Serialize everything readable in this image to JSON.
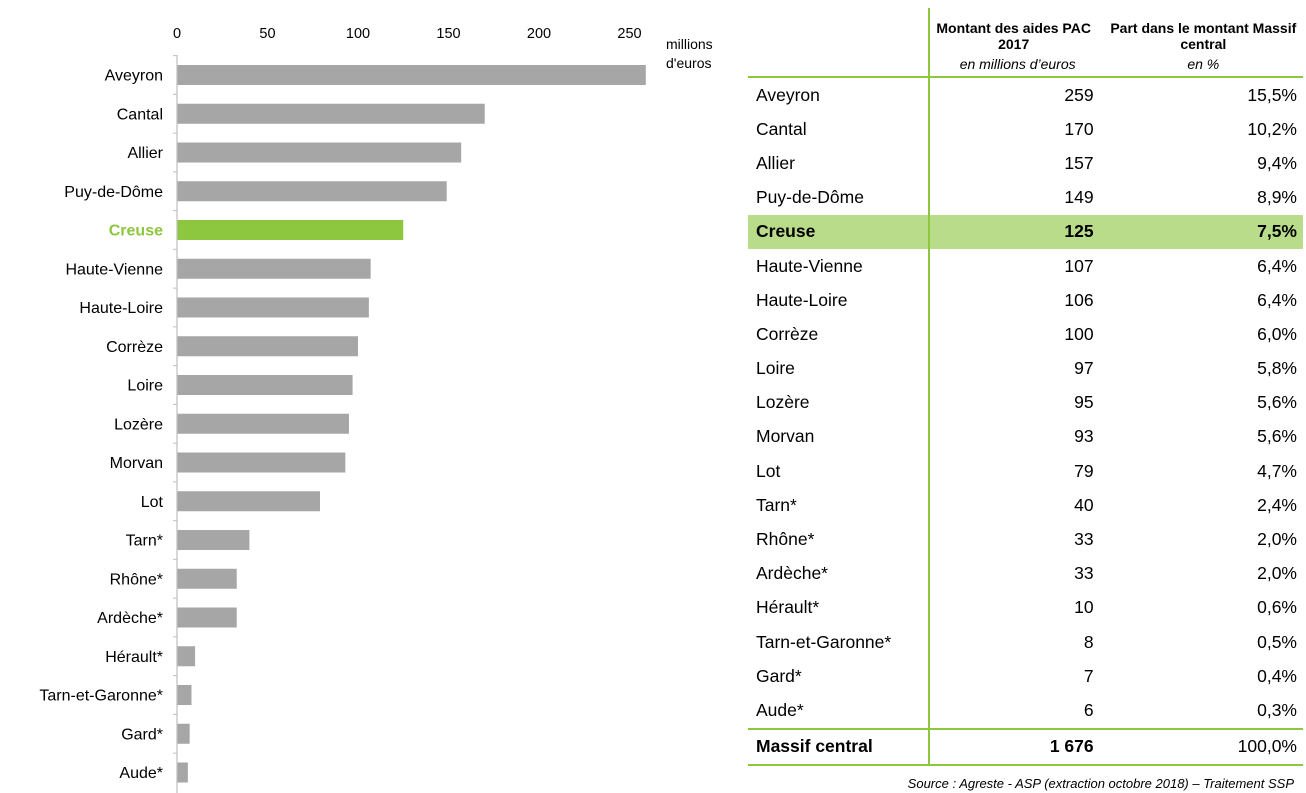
{
  "chart_data": {
    "type": "bar",
    "orientation": "horizontal",
    "categories": [
      "Aveyron",
      "Cantal",
      "Allier",
      "Puy-de-Dôme",
      "Creuse",
      "Haute-Vienne",
      "Haute-Loire",
      "Corrèze",
      "Loire",
      "Lozère",
      "Morvan",
      "Lot",
      "Tarn*",
      "Rhône*",
      "Ardèche*",
      "Hérault*",
      "Tarn-et-Garonne*",
      "Gard*",
      "Aude*"
    ],
    "values": [
      259,
      170,
      157,
      149,
      125,
      107,
      106,
      100,
      97,
      95,
      93,
      79,
      40,
      33,
      33,
      10,
      8,
      7,
      6
    ],
    "highlight": "Creuse",
    "xlim": [
      0,
      260
    ],
    "xticks": [
      0,
      50,
      100,
      150,
      200,
      250
    ],
    "xlabel": "millions d'euros",
    "colors": {
      "bar": "#a6a6a6",
      "highlight": "#8dc63f",
      "axis": "#bfbfbf"
    }
  },
  "table": {
    "headers": {
      "amount": "Montant des aides PAC 2017",
      "share": "Part dans le montant Massif central"
    },
    "subheaders": {
      "amount": "en millions d’euros",
      "share": "en %"
    },
    "rows": [
      {
        "name": "Aveyron",
        "amount": "259",
        "share": "15,5%"
      },
      {
        "name": "Cantal",
        "amount": "170",
        "share": "10,2%"
      },
      {
        "name": "Allier",
        "amount": "157",
        "share": "9,4%"
      },
      {
        "name": "Puy-de-Dôme",
        "amount": "149",
        "share": "8,9%"
      },
      {
        "name": "Creuse",
        "amount": "125",
        "share": "7,5%",
        "highlight": true
      },
      {
        "name": "Haute-Vienne",
        "amount": "107",
        "share": "6,4%"
      },
      {
        "name": "Haute-Loire",
        "amount": "106",
        "share": "6,4%"
      },
      {
        "name": "Corrèze",
        "amount": "100",
        "share": "6,0%"
      },
      {
        "name": "Loire",
        "amount": "97",
        "share": "5,8%"
      },
      {
        "name": "Lozère",
        "amount": "95",
        "share": "5,6%"
      },
      {
        "name": "Morvan",
        "amount": "93",
        "share": "5,6%"
      },
      {
        "name": "Lot",
        "amount": "79",
        "share": "4,7%"
      },
      {
        "name": "Tarn*",
        "amount": "40",
        "share": "2,4%"
      },
      {
        "name": "Rhône*",
        "amount": "33",
        "share": "2,0%"
      },
      {
        "name": "Ardèche*",
        "amount": "33",
        "share": "2,0%"
      },
      {
        "name": "Hérault*",
        "amount": "10",
        "share": "0,6%"
      },
      {
        "name": "Tarn-et-Garonne*",
        "amount": "8",
        "share": "0,5%"
      },
      {
        "name": "Gard*",
        "amount": "7",
        "share": "0,4%"
      },
      {
        "name": "Aude*",
        "amount": "6",
        "share": "0,3%"
      }
    ],
    "total": {
      "name": "Massif central",
      "amount": "1 676",
      "share": "100,0%"
    }
  },
  "unit_label": [
    "millions",
    "d'euros"
  ],
  "source": "Source : Agreste - ASP (extraction octobre 2018) – Traitement SSP"
}
